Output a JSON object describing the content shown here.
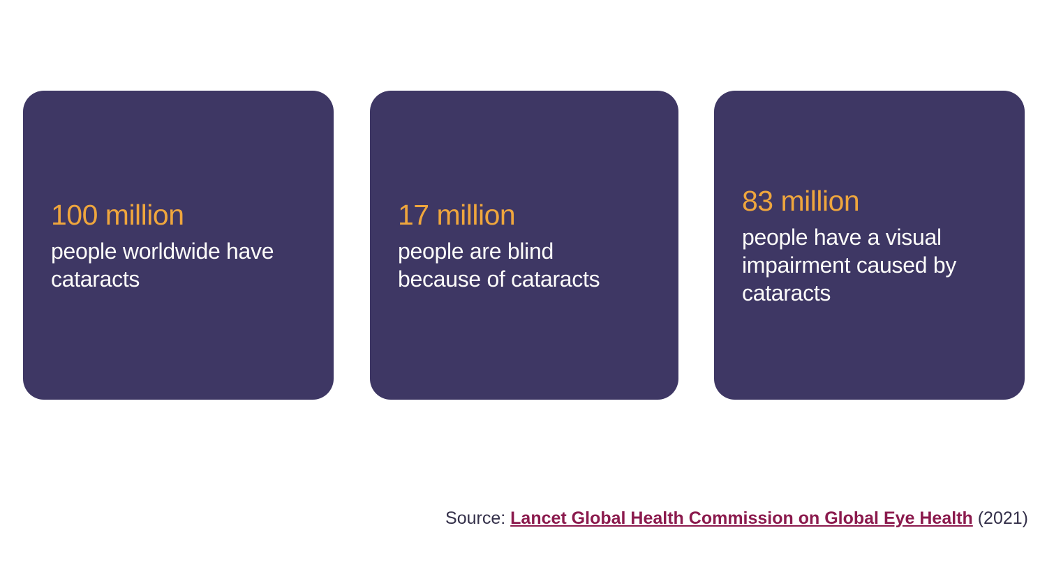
{
  "colors": {
    "card_background": "#3e3764",
    "stat_accent": "#efa63d",
    "card_text": "#fdfcfa",
    "source_text": "#34304a",
    "source_link": "#8b1a4d"
  },
  "cards": [
    {
      "stat": "100 million",
      "description": "people worldwide have cataracts"
    },
    {
      "stat": "17 million",
      "description": "people are blind because of cataracts"
    },
    {
      "stat": "83 million",
      "description": "people have a visual impairment caused by cataracts"
    }
  ],
  "source": {
    "prefix": "Source:",
    "link_text": "Lancet Global Health Commission on Global Eye Health",
    "suffix": "(2021)"
  },
  "chart_data": {
    "type": "table",
    "categories": [
      "people worldwide have cataracts",
      "people are blind because of cataracts",
      "people have a visual impairment caused by cataracts"
    ],
    "value_labels": [
      "100 million",
      "17 million",
      "83 million"
    ],
    "values_millions": [
      100,
      17,
      83
    ],
    "source": "Source: Lancet Global Health Commission on Global Eye Health (2021)",
    "legend_position": "none",
    "grid": false
  }
}
